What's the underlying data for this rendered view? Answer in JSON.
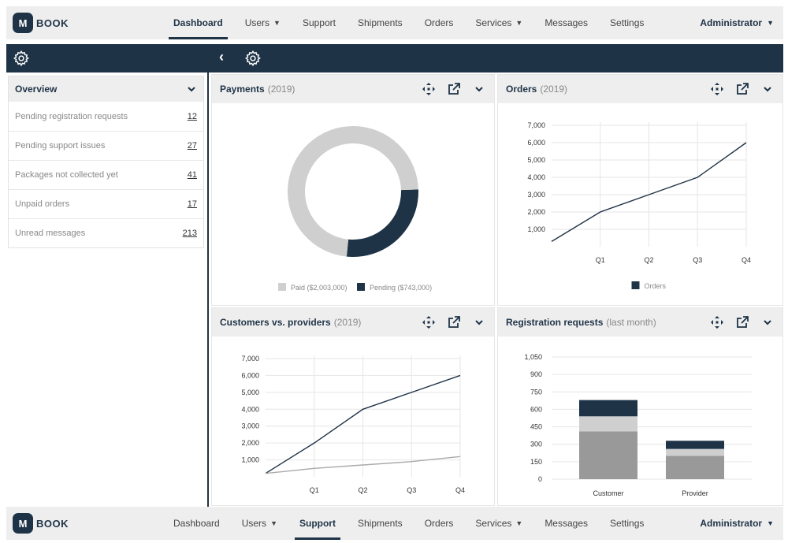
{
  "brand": {
    "logo_letter": "M",
    "name": "BOOK"
  },
  "nav": {
    "items": [
      {
        "label": "Dashboard",
        "caret": false
      },
      {
        "label": "Users",
        "caret": true
      },
      {
        "label": "Support",
        "caret": false
      },
      {
        "label": "Shipments",
        "caret": false
      },
      {
        "label": "Orders",
        "caret": false
      },
      {
        "label": "Services",
        "caret": true
      },
      {
        "label": "Messages",
        "caret": false
      },
      {
        "label": "Settings",
        "caret": false
      }
    ],
    "top_active": "Dashboard",
    "bottom_active": "Support",
    "user": "Administrator"
  },
  "toolbar": {
    "left_icon": "gear-icon",
    "back_icon": "chevron-left-icon",
    "mid_icon": "gear-icon"
  },
  "overview": {
    "title": "Overview",
    "rows": [
      {
        "label": "Pending registration requests",
        "count": "12"
      },
      {
        "label": "Pending support issues",
        "count": "27"
      },
      {
        "label": "Packages not collected yet",
        "count": "41"
      },
      {
        "label": "Unpaid orders",
        "count": "17"
      },
      {
        "label": "Unread messages",
        "count": "213"
      }
    ]
  },
  "panels": {
    "payments": {
      "title": "Payments",
      "sub": "(2019)"
    },
    "orders": {
      "title": "Orders",
      "sub": "(2019)"
    },
    "customers": {
      "title": "Customers vs. providers",
      "sub": "(2019)"
    },
    "registrations": {
      "title": "Registration requests",
      "sub": "(last month)"
    }
  },
  "colors": {
    "navy": "#1f3347",
    "light_gray": "#cfcfcf",
    "mid_gray": "#999999",
    "bg_gray": "#eeeeee"
  },
  "chart_data": [
    {
      "id": "payments",
      "type": "pie",
      "title": "Payments (2019)",
      "slices": [
        {
          "label": "Paid ($2,003,000)",
          "value": 2003000,
          "color": "#cfcfcf"
        },
        {
          "label": "Pending ($743,000)",
          "value": 743000,
          "color": "#1f3347"
        }
      ],
      "legend": "bottom"
    },
    {
      "id": "orders",
      "type": "line",
      "title": "Orders (2019)",
      "categories": [
        "Q1",
        "Q2",
        "Q3",
        "Q4"
      ],
      "yticks": [
        "1,000",
        "2,000",
        "3,000",
        "4,000",
        "5,000",
        "6,000",
        "7,000"
      ],
      "ylim": [
        0,
        7000
      ],
      "series": [
        {
          "name": "Orders",
          "start": 300,
          "values": [
            2000,
            3000,
            4000,
            6000
          ],
          "color": "#1f3347"
        }
      ],
      "legend": "bottom",
      "grid": true
    },
    {
      "id": "customers",
      "type": "line",
      "title": "Customers vs. providers (2019)",
      "categories": [
        "Q1",
        "Q2",
        "Q3",
        "Q4"
      ],
      "yticks": [
        "1,000",
        "2,000",
        "3,000",
        "4,000",
        "5,000",
        "6,000",
        "7,000"
      ],
      "ylim": [
        0,
        7000
      ],
      "series": [
        {
          "start": 200,
          "values": [
            2000,
            4000,
            5000,
            6000
          ],
          "color": "#1f3347"
        },
        {
          "start": 200,
          "values": [
            500,
            700,
            900,
            1200
          ],
          "color": "#aaaaaa"
        }
      ],
      "grid": true
    },
    {
      "id": "registrations",
      "type": "bar",
      "title": "Registration requests (last month)",
      "stacked": true,
      "categories": [
        "Customer",
        "Provider"
      ],
      "yticks": [
        "0",
        "150",
        "300",
        "450",
        "600",
        "750",
        "900",
        "1,050"
      ],
      "ylim": [
        0,
        1050
      ],
      "series": [
        {
          "values": [
            410,
            200
          ],
          "color": "#999999"
        },
        {
          "values": [
            130,
            60
          ],
          "color": "#cfcfcf"
        },
        {
          "values": [
            140,
            70
          ],
          "color": "#1f3347"
        }
      ],
      "grid": true
    }
  ]
}
